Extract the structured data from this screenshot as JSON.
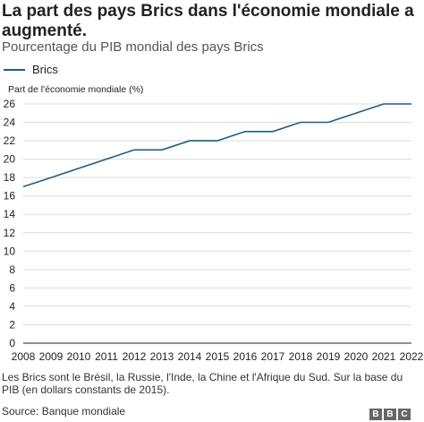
{
  "title": "La part des pays Brics dans l'économie mondiale a augmenté.",
  "subtitle": "Pourcentage du PIB mondial des pays Brics",
  "note": "Les Brics sont le Brésil, la Russie, l'Inde, la Chine et l'Afrique du Sud. Sur la base du PIB (en dollars constants de 2015).",
  "source": "Source: Banque mondiale",
  "logo": [
    "B",
    "B",
    "C"
  ],
  "colors": {
    "series": "#1d5d7f",
    "grid": "#dcdcdc",
    "axis": "#222222"
  },
  "chart_data": {
    "type": "line",
    "title": "La part des pays Brics dans l'économie mondiale a augmenté.",
    "subtitle": "Pourcentage du PIB mondial des pays Brics",
    "xlabel": "",
    "ylabel": "Part de l'économie mondiale (%)",
    "legend": "top-left",
    "grid": true,
    "xlim": [
      2008,
      2022
    ],
    "ylim": [
      0,
      26
    ],
    "yticks": [
      0,
      2,
      4,
      6,
      8,
      10,
      12,
      14,
      16,
      18,
      20,
      22,
      24,
      26
    ],
    "x": [
      2008,
      2009,
      2010,
      2011,
      2012,
      2013,
      2014,
      2015,
      2016,
      2017,
      2018,
      2019,
      2020,
      2021,
      2022
    ],
    "series": [
      {
        "name": "Brics",
        "values": [
          17,
          18,
          19,
          20,
          21,
          21,
          22,
          22,
          23,
          23,
          24,
          24,
          25,
          26,
          26
        ]
      }
    ]
  }
}
